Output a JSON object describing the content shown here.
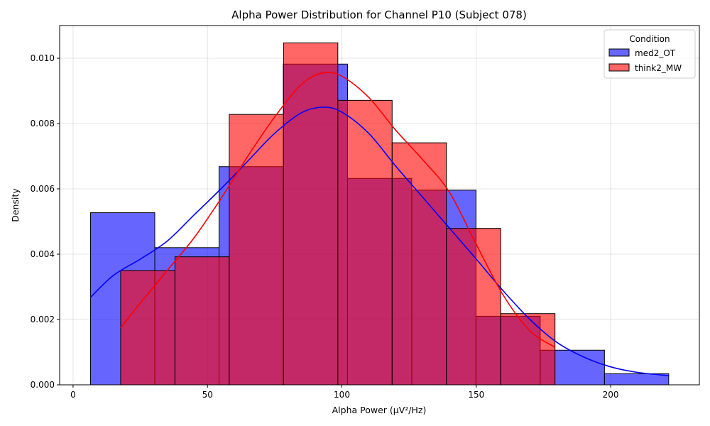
{
  "chart_data": {
    "type": "histogram",
    "title": "Alpha Power Distribution for Channel P10 (Subject 078)",
    "xlabel": "Alpha Power (µV²/Hz)",
    "ylabel": "Density",
    "xlim": [
      -5,
      233
    ],
    "ylim": [
      0,
      0.011
    ],
    "xticks": [
      0,
      50,
      100,
      150,
      200
    ],
    "yticks": [
      0.0,
      0.002,
      0.004,
      0.006,
      0.008,
      0.01
    ],
    "ytick_labels": [
      "0.000",
      "0.002",
      "0.004",
      "0.006",
      "0.008",
      "0.010"
    ],
    "grid": true,
    "legend": {
      "title": "Condition",
      "position": "top-right"
    },
    "series": [
      {
        "name": "med2_OT",
        "color": "#0000ff",
        "bins": [
          {
            "x0": 6.5,
            "x1": 30.4,
            "density": 0.00527
          },
          {
            "x0": 30.4,
            "x1": 54.3,
            "density": 0.0042
          },
          {
            "x0": 54.3,
            "x1": 78.2,
            "density": 0.00668
          },
          {
            "x0": 78.2,
            "x1": 102.1,
            "density": 0.00982
          },
          {
            "x0": 102.1,
            "x1": 126.0,
            "density": 0.00632
          },
          {
            "x0": 126.0,
            "x1": 149.9,
            "density": 0.00596
          },
          {
            "x0": 149.9,
            "x1": 173.8,
            "density": 0.0021
          },
          {
            "x0": 173.8,
            "x1": 197.7,
            "density": 0.00106
          },
          {
            "x0": 197.7,
            "x1": 221.6,
            "density": 0.00034
          }
        ],
        "kde": [
          [
            6.5,
            0.00268
          ],
          [
            15,
            0.00335
          ],
          [
            25,
            0.00385
          ],
          [
            35,
            0.0044
          ],
          [
            45,
            0.0052
          ],
          [
            55,
            0.006
          ],
          [
            65,
            0.00685
          ],
          [
            75,
            0.0077
          ],
          [
            85,
            0.00833
          ],
          [
            93,
            0.0085
          ],
          [
            100,
            0.00835
          ],
          [
            110,
            0.0077
          ],
          [
            120,
            0.0067
          ],
          [
            130,
            0.00575
          ],
          [
            140,
            0.0048
          ],
          [
            150,
            0.00385
          ],
          [
            160,
            0.00288
          ],
          [
            170,
            0.002
          ],
          [
            180,
            0.0013
          ],
          [
            190,
            0.00085
          ],
          [
            200,
            0.00055
          ],
          [
            210,
            0.00038
          ],
          [
            221.6,
            0.00028
          ]
        ]
      },
      {
        "name": "think2_MW",
        "color": "#ff0000",
        "bins": [
          {
            "x0": 17.7,
            "x1": 37.9,
            "density": 0.0035
          },
          {
            "x0": 37.9,
            "x1": 58.1,
            "density": 0.00392
          },
          {
            "x0": 58.1,
            "x1": 78.3,
            "density": 0.00828
          },
          {
            "x0": 78.3,
            "x1": 98.5,
            "density": 0.01047
          },
          {
            "x0": 98.5,
            "x1": 118.7,
            "density": 0.00871
          },
          {
            "x0": 118.7,
            "x1": 138.9,
            "density": 0.00741
          },
          {
            "x0": 138.9,
            "x1": 159.1,
            "density": 0.00479
          },
          {
            "x0": 159.1,
            "x1": 179.3,
            "density": 0.00218
          }
        ],
        "kde": [
          [
            17.7,
            0.00175
          ],
          [
            25,
            0.0025
          ],
          [
            35,
            0.0035
          ],
          [
            45,
            0.0045
          ],
          [
            55,
            0.0057
          ],
          [
            65,
            0.007
          ],
          [
            75,
            0.0082
          ],
          [
            85,
            0.0092
          ],
          [
            93,
            0.00955
          ],
          [
            100,
            0.00945
          ],
          [
            110,
            0.0088
          ],
          [
            120,
            0.0078
          ],
          [
            130,
            0.0069
          ],
          [
            140,
            0.0059
          ],
          [
            150,
            0.0043
          ],
          [
            160,
            0.00275
          ],
          [
            170,
            0.00165
          ],
          [
            179.3,
            0.00115
          ]
        ]
      }
    ]
  }
}
